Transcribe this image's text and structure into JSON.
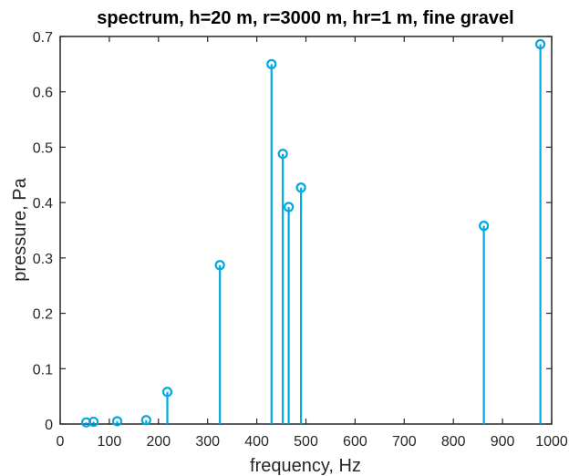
{
  "chart_data": {
    "type": "stem",
    "title": "spectrum, h=20 m, r=3000 m, hr=1 m, fine gravel",
    "xlabel": "frequency, Hz",
    "ylabel": "pressure, Pa",
    "xlim": [
      0,
      1000
    ],
    "ylim": [
      0,
      0.7
    ],
    "xticks": [
      "0",
      "100",
      "200",
      "300",
      "400",
      "500",
      "600",
      "700",
      "800",
      "900",
      "1000"
    ],
    "yticks": [
      "0",
      "0.1",
      "0.2",
      "0.3",
      "0.4",
      "0.5",
      "0.6",
      "0.7"
    ],
    "grid": false,
    "series": [
      {
        "x": [
          53,
          68,
          116,
          175,
          218,
          325,
          430,
          453,
          465,
          490,
          862,
          977
        ],
        "y": [
          0.003,
          0.004,
          0.005,
          0.007,
          0.058,
          0.287,
          0.65,
          0.488,
          0.392,
          0.427,
          0.358,
          0.686
        ]
      }
    ],
    "colors": {
      "series": "#00A9E0",
      "axes": "#262626"
    }
  }
}
